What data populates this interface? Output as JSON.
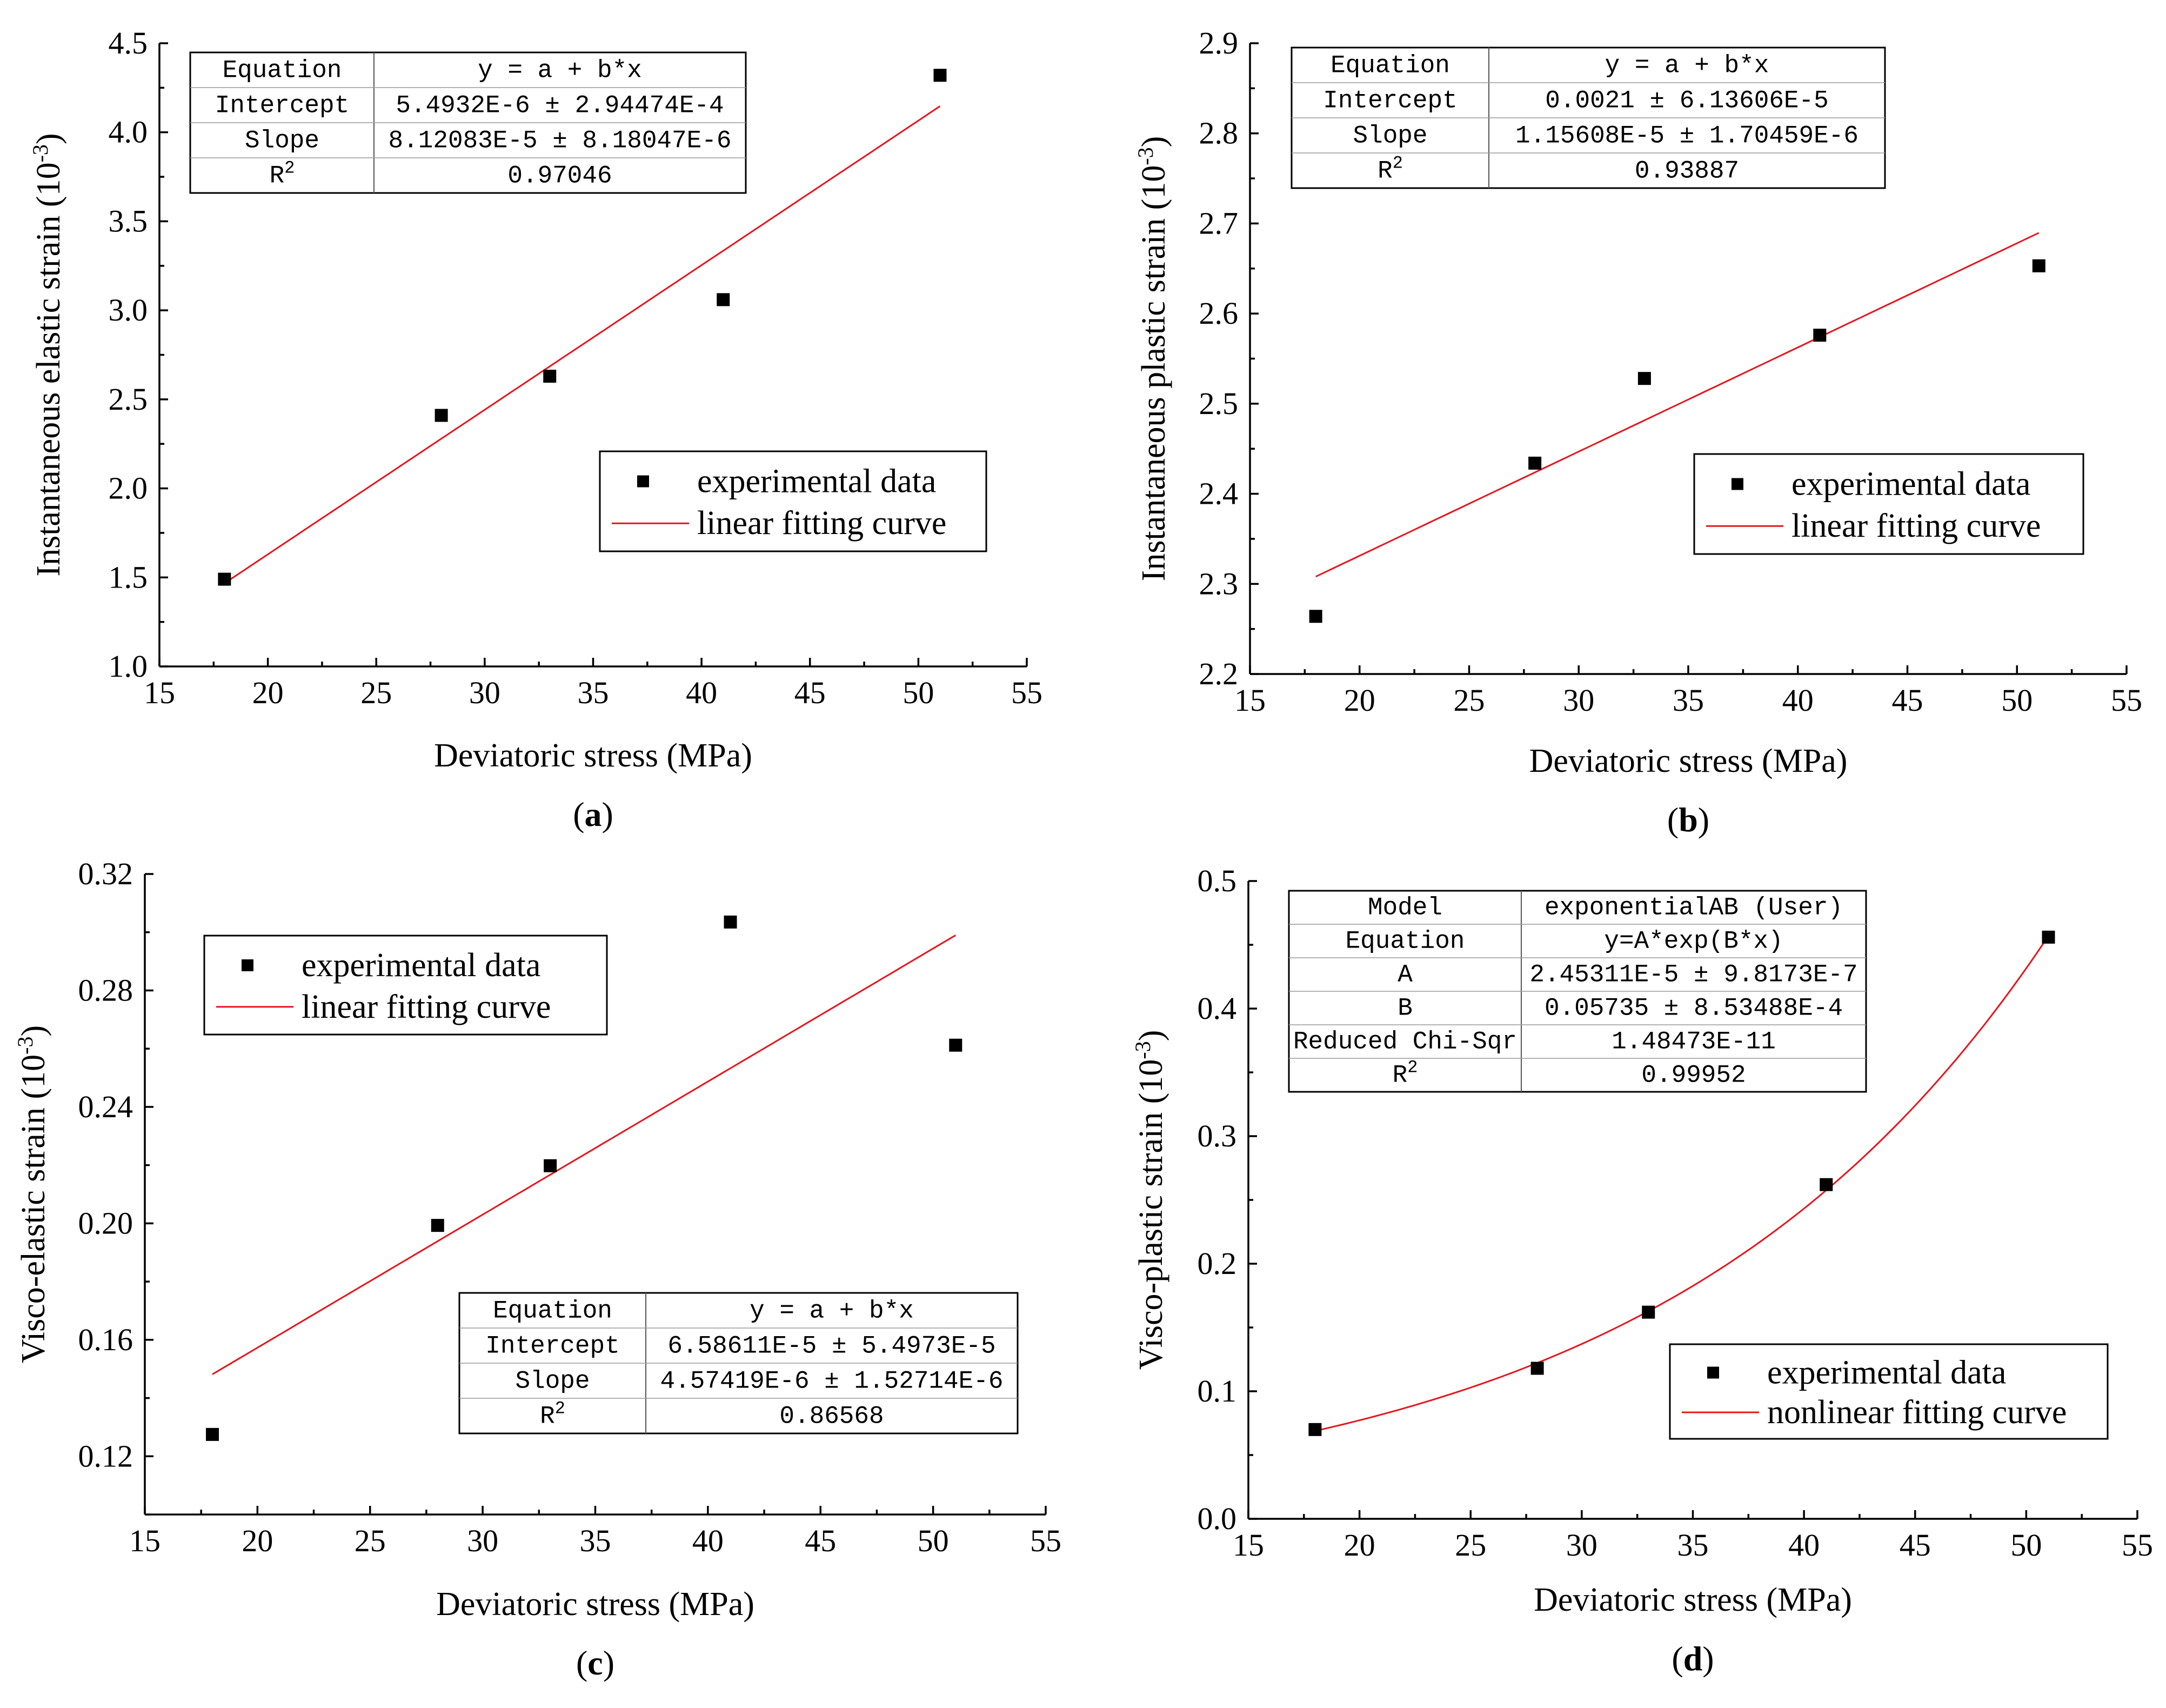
{
  "chart_data": [
    {
      "type": "scatter",
      "panel_label": "a",
      "xlabel": "Deviatoric stress (MPa)",
      "ylabel_main": "Instantaneous elastic strain (10",
      "ylabel_exp": "-3",
      "ylabel_close": ")",
      "xlim": [
        15,
        55
      ],
      "ylim": [
        1.0,
        4.5
      ],
      "xticks": [
        "15",
        "20",
        "25",
        "30",
        "35",
        "40",
        "45",
        "50",
        "55"
      ],
      "yticks": [
        "1.0",
        "1.5",
        "2.0",
        "2.5",
        "3.0",
        "3.5",
        "4.0",
        "4.5"
      ],
      "series": [
        {
          "name": "experimental data",
          "x": [
            18,
            28,
            33,
            41,
            51
          ],
          "y": [
            1.49,
            2.41,
            2.63,
            3.06,
            4.32
          ]
        },
        {
          "name": "linear fitting curve",
          "fit": "linear",
          "x_range": [
            18,
            51
          ],
          "intercept": 0.0055,
          "slope": 0.0812
        }
      ],
      "legend": [
        "experimental data",
        "linear fitting curve"
      ],
      "table": {
        "rows": [
          [
            "Equation",
            "y = a + b*x"
          ],
          [
            "Intercept",
            "5.4932E-6 ± 2.94474E-4"
          ],
          [
            "Slope",
            "8.12083E-5 ± 8.18047E-6"
          ],
          [
            "R",
            "0.97046"
          ]
        ]
      }
    },
    {
      "type": "scatter",
      "panel_label": "b",
      "xlabel": "Deviatoric stress (MPa)",
      "ylabel_main": "Instantaneous plastic strain (10",
      "ylabel_exp": "-3",
      "ylabel_close": ")",
      "xlim": [
        15,
        55
      ],
      "ylim": [
        2.2,
        2.9
      ],
      "xticks": [
        "15",
        "20",
        "25",
        "30",
        "35",
        "40",
        "45",
        "50",
        "55"
      ],
      "yticks": [
        "2.2",
        "2.3",
        "2.4",
        "2.5",
        "2.6",
        "2.7",
        "2.8",
        "2.9"
      ],
      "series": [
        {
          "name": "experimental data",
          "x": [
            18,
            28,
            33,
            41,
            51
          ],
          "y": [
            2.264,
            2.434,
            2.528,
            2.576,
            2.653
          ]
        },
        {
          "name": "linear fitting curve",
          "fit": "linear",
          "x_range": [
            18,
            51
          ],
          "intercept": 2.1,
          "slope": 0.0115608
        }
      ],
      "legend": [
        "experimental data",
        "linear fitting curve"
      ],
      "table": {
        "rows": [
          [
            "Equation",
            "y = a + b*x"
          ],
          [
            "Intercept",
            "0.0021 ± 6.13606E-5"
          ],
          [
            "Slope",
            "1.15608E-5 ± 1.70459E-6"
          ],
          [
            "R",
            "0.93887"
          ]
        ]
      }
    },
    {
      "type": "scatter",
      "panel_label": "c",
      "xlabel": "Deviatoric stress (MPa)",
      "ylabel_main": "Visco-elastic strain (10",
      "ylabel_exp": "-3",
      "ylabel_close": ")",
      "xlim": [
        15,
        55
      ],
      "ylim": [
        0.1,
        0.32
      ],
      "xticks": [
        "15",
        "20",
        "25",
        "30",
        "35",
        "40",
        "45",
        "50",
        "55"
      ],
      "yticks": [
        "0.12",
        "0.16",
        "0.20",
        "0.24",
        "0.28",
        "0.32"
      ],
      "ytick_values": [
        0.12,
        0.16,
        0.2,
        0.24,
        0.28,
        0.32
      ],
      "series": [
        {
          "name": "experimental data",
          "x": [
            18,
            28,
            33,
            41,
            51
          ],
          "y": [
            0.1275,
            0.1993,
            0.2198,
            0.3035,
            0.2612
          ]
        },
        {
          "name": "linear fitting curve",
          "fit": "linear",
          "x_range": [
            18,
            51
          ],
          "intercept": 0.0659,
          "slope": 0.00457
        }
      ],
      "legend": [
        "experimental data",
        "linear fitting curve"
      ],
      "table": {
        "rows": [
          [
            "Equation",
            "y = a + b*x"
          ],
          [
            "Intercept",
            "6.58611E-5 ± 5.4973E-5"
          ],
          [
            "Slope",
            "4.57419E-6 ± 1.52714E-6"
          ],
          [
            "R",
            "0.86568"
          ]
        ]
      }
    },
    {
      "type": "scatter",
      "panel_label": "d",
      "xlabel": "Deviatoric stress (MPa)",
      "ylabel_main": "Visco-plastic strain (10",
      "ylabel_exp": "-3",
      "ylabel_close": ")",
      "xlim": [
        15,
        55
      ],
      "ylim": [
        0.0,
        0.5
      ],
      "xticks": [
        "15",
        "20",
        "25",
        "30",
        "35",
        "40",
        "45",
        "50",
        "55"
      ],
      "yticks": [
        "0.0",
        "0.1",
        "0.2",
        "0.3",
        "0.4",
        "0.5"
      ],
      "series": [
        {
          "name": "experimental data",
          "x": [
            18,
            28,
            33,
            41,
            51
          ],
          "y": [
            0.07,
            0.118,
            0.162,
            0.262,
            0.456
          ]
        },
        {
          "name": "nonlinear fitting curve",
          "fit": "exponential",
          "x_range": [
            18,
            51
          ],
          "A": 0.0245311,
          "B": 0.05735
        }
      ],
      "legend": [
        "experimental data",
        "nonlinear fitting curve"
      ],
      "table": {
        "rows": [
          [
            "Model",
            "exponentialAB (User)"
          ],
          [
            "Equation",
            "y=A*exp(B*x)"
          ],
          [
            "A",
            "2.45311E-5 ± 9.8173E-7"
          ],
          [
            "B",
            "0.05735 ± 8.53488E-4"
          ],
          [
            "Reduced Chi-Sqr",
            "1.48473E-11"
          ],
          [
            "R",
            "0.99952"
          ]
        ]
      }
    }
  ]
}
